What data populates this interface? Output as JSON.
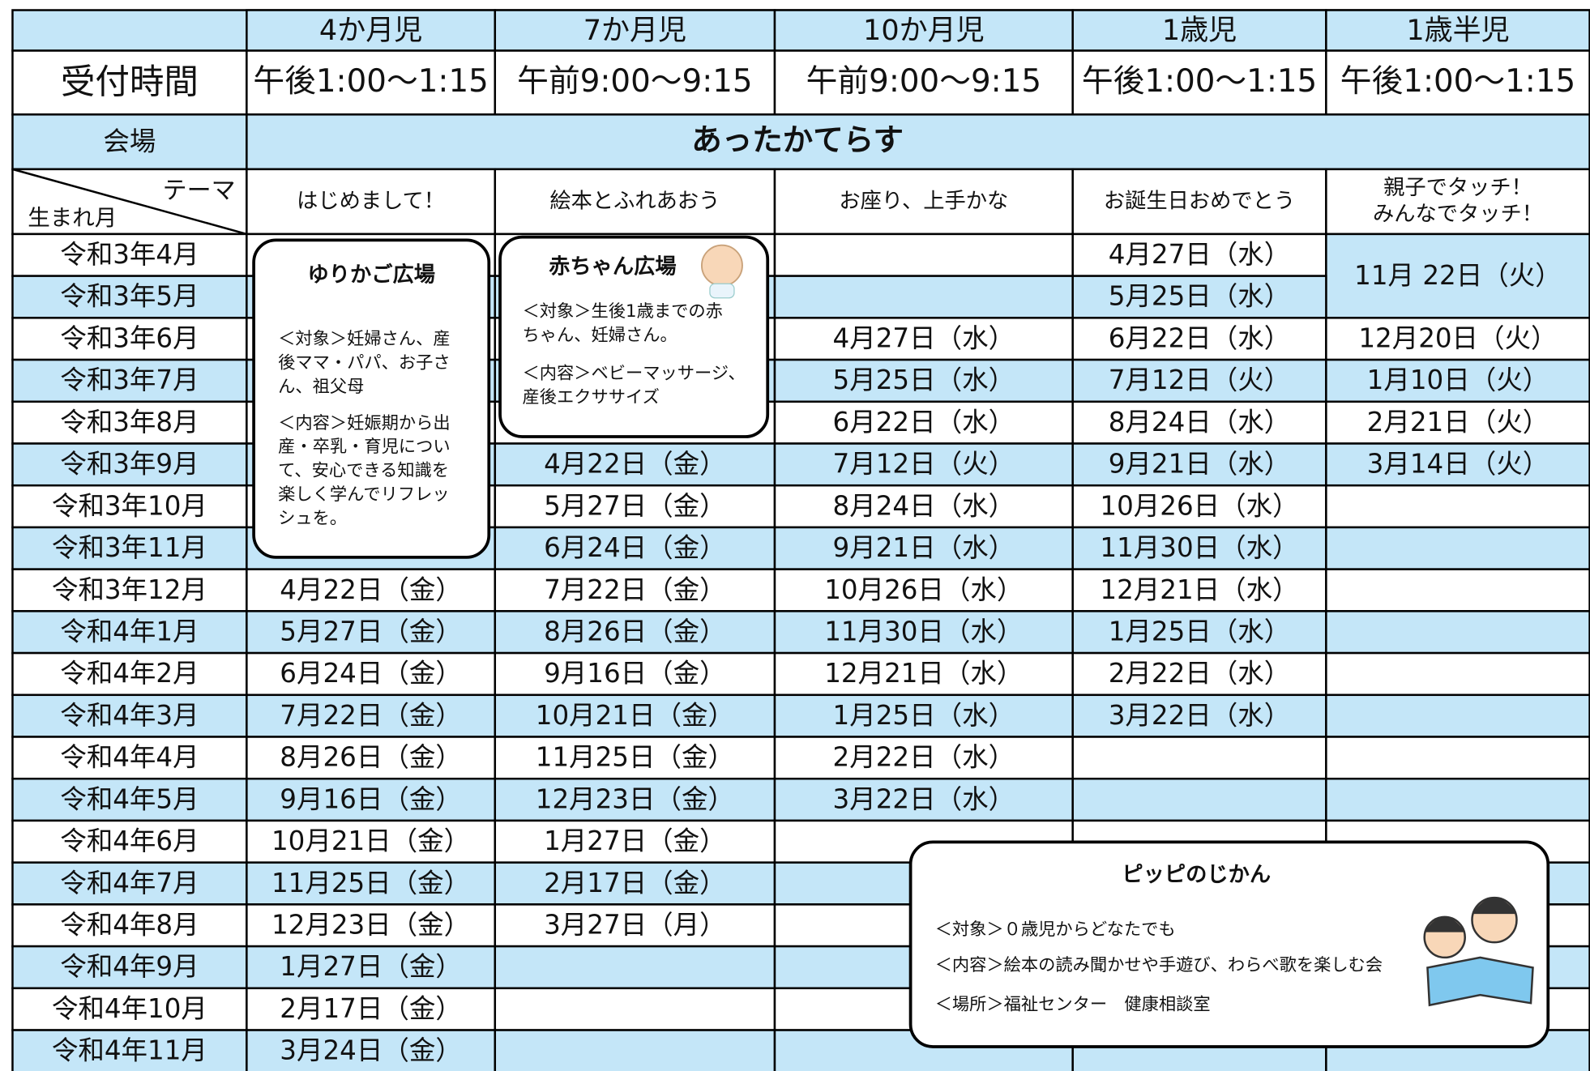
{
  "columns": [
    "4か月児",
    "7か月児",
    "10か月児",
    "1歳児",
    "1歳半児"
  ],
  "reception": {
    "label": "受付時間",
    "times": [
      "午後1:00～1:15",
      "午前9:00～9:15",
      "午前9:00～9:15",
      "午後1:00～1:15",
      "午後1:00～1:15"
    ]
  },
  "venue": {
    "label": "会場",
    "value": "あったかてらす"
  },
  "theme": {
    "label_top": "テーマ",
    "label_bottom": "生まれ月",
    "values": [
      [
        "はじめまして！"
      ],
      [
        "絵本とふれあおう"
      ],
      [
        "お座り、上手かな"
      ],
      [
        "お誕生日おめでとう"
      ],
      [
        "親子でタッチ！",
        "みんなでタッチ！"
      ]
    ]
  },
  "rows": [
    {
      "month": "令和3年4月",
      "cells": [
        null,
        null,
        null,
        "4月27日（水）",
        "11月 22日（火）"
      ]
    },
    {
      "month": "令和3年5月",
      "cells": [
        null,
        null,
        null,
        "5月25日（水）",
        null
      ]
    },
    {
      "month": "令和3年6月",
      "cells": [
        null,
        null,
        "4月27日（水）",
        "6月22日（水）",
        "12月20日（火）"
      ]
    },
    {
      "month": "令和3年7月",
      "cells": [
        null,
        null,
        "5月25日（水）",
        "7月12日（火）",
        "1月10日（火）"
      ]
    },
    {
      "month": "令和3年8月",
      "cells": [
        null,
        null,
        "6月22日（水）",
        "8月24日（水）",
        "2月21日（火）"
      ]
    },
    {
      "month": "令和3年9月",
      "cells": [
        null,
        "4月22日（金）",
        "7月12日（火）",
        "9月21日（水）",
        "3月14日（火）"
      ]
    },
    {
      "month": "令和3年10月",
      "cells": [
        null,
        "5月27日（金）",
        "8月24日（水）",
        "10月26日（水）",
        null
      ]
    },
    {
      "month": "令和3年11月",
      "cells": [
        null,
        "6月24日（金）",
        "9月21日（水）",
        "11月30日（水）",
        null
      ]
    },
    {
      "month": "令和3年12月",
      "cells": [
        "4月22日（金）",
        "7月22日（金）",
        "10月26日（水）",
        "12月21日（水）",
        null
      ]
    },
    {
      "month": "令和4年1月",
      "cells": [
        "5月27日（金）",
        "8月26日（金）",
        "11月30日（水）",
        "1月25日（水）",
        null
      ]
    },
    {
      "month": "令和4年2月",
      "cells": [
        "6月24日（金）",
        "9月16日（金）",
        "12月21日（水）",
        "2月22日（水）",
        null
      ]
    },
    {
      "month": "令和4年3月",
      "cells": [
        "7月22日（金）",
        "10月21日（金）",
        "1月25日（水）",
        "3月22日（水）",
        null
      ]
    },
    {
      "month": "令和4年4月",
      "cells": [
        "8月26日（金）",
        "11月25日（金）",
        "2月22日（水）",
        null,
        null
      ]
    },
    {
      "month": "令和4年5月",
      "cells": [
        "9月16日（金）",
        "12月23日（金）",
        "3月22日（水）",
        null,
        null
      ]
    },
    {
      "month": "令和4年6月",
      "cells": [
        "10月21日（金）",
        "1月27日（金）",
        null,
        null,
        null
      ]
    },
    {
      "month": "令和4年7月",
      "cells": [
        "11月25日（金）",
        "2月17日（金）",
        null,
        null,
        null
      ]
    },
    {
      "month": "令和4年8月",
      "cells": [
        "12月23日（金）",
        "3月27日（月）",
        null,
        null,
        null
      ]
    },
    {
      "month": "令和4年9月",
      "cells": [
        "1月27日（金）",
        null,
        null,
        null,
        null
      ]
    },
    {
      "month": "令和4年10月",
      "cells": [
        "2月17日（金）",
        null,
        null,
        null,
        null
      ]
    },
    {
      "month": "令和4年11月",
      "cells": [
        "3月24日（金）",
        null,
        null,
        null,
        null
      ]
    }
  ],
  "boxes": {
    "yurikago": {
      "title": "ゆりかご広場",
      "target": [
        "＜対象＞妊婦さん、産",
        "後ママ・パパ、お子さ",
        "ん、祖父母"
      ],
      "content": [
        "＜内容＞妊娠期から出",
        "産・卒乳・育児につい",
        "て、安心できる知識を",
        "楽しく学んでリフレッ",
        "シュを。"
      ]
    },
    "akachan": {
      "title": "赤ちゃん広場",
      "target": [
        "＜対象＞生後1歳までの赤",
        "ちゃん、妊婦さん。"
      ],
      "content": [
        "＜内容＞ベビーマッサージ、",
        "産後エクササイズ"
      ]
    },
    "pippi": {
      "title": "ピッピのじかん",
      "target": "＜対象＞０歳児からどなたでも",
      "content": "＜内容＞絵本の読み聞かせや手遊び、わらべ歌を楽しむ会",
      "place": "＜場所＞福祉センター　健康相談室"
    }
  }
}
